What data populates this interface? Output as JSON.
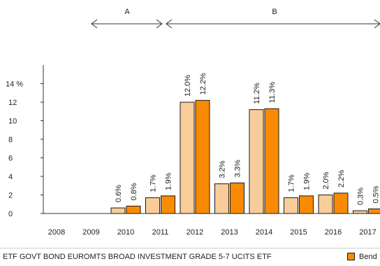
{
  "colors": {
    "fund": "#f8cd9a",
    "benchmark": "#f98a04",
    "axis": "#333333",
    "bar_edge": "#1a1a1a"
  },
  "chart_data": {
    "type": "bar",
    "categories": [
      "2008",
      "2009",
      "2010",
      "2011",
      "2012",
      "2013",
      "2014",
      "2015",
      "2016",
      "2017"
    ],
    "series": [
      {
        "name": "ETF GOVT BOND EUROMTS BROAD INVESTMENT GRADE 5-7 UCITS ETF",
        "values": [
          null,
          null,
          0.6,
          1.7,
          12.0,
          3.2,
          11.2,
          1.7,
          2.0,
          0.3
        ],
        "labels": [
          "",
          "",
          "0.6%",
          "1.7%",
          "12.0%",
          "3.2%",
          "11.2%",
          "1.7%",
          "2.0%",
          "0.3%"
        ]
      },
      {
        "name": "Bend",
        "values": [
          null,
          null,
          0.8,
          1.9,
          12.2,
          3.3,
          11.3,
          1.9,
          2.2,
          0.5
        ],
        "labels": [
          "",
          "",
          "0.8%",
          "1.9%",
          "12.2%",
          "3.3%",
          "11.3%",
          "1.9%",
          "2.2%",
          "0.5%"
        ]
      }
    ],
    "yticks": [
      "0",
      "2",
      "4",
      "6",
      "8",
      "10",
      "12",
      "14 %"
    ],
    "ylim": [
      0,
      14
    ],
    "periods": [
      {
        "label": "A",
        "from": "2009",
        "to": "2011"
      },
      {
        "label": "B",
        "from": "2011",
        "to": "2017"
      }
    ],
    "grid": false,
    "legend_position": "bottom"
  },
  "legend": {
    "fund_label": "ETF GOVT BOND EUROMTS BROAD INVESTMENT GRADE 5-7 UCITS ETF",
    "benchmark_label": "Bend"
  }
}
